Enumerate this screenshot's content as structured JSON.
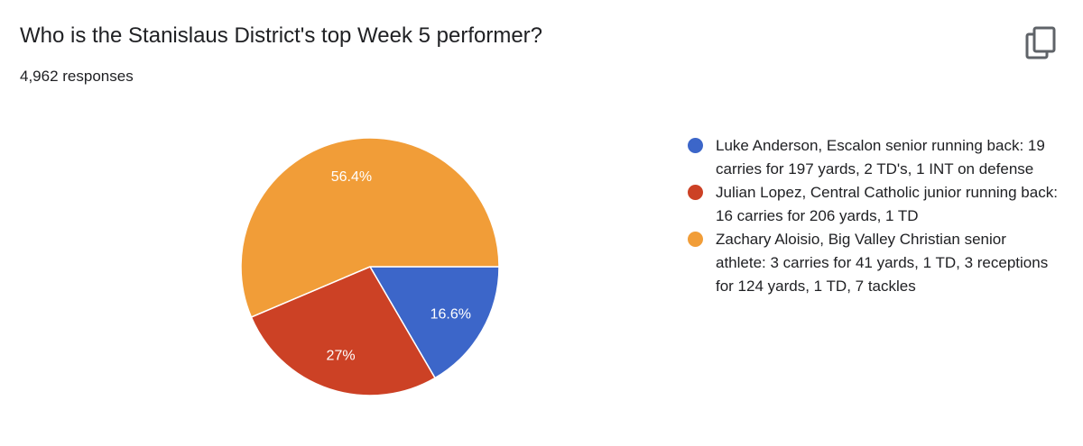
{
  "header": {
    "title": "Who is the Stanislaus District's top Week 5 performer?",
    "responses": "4,962 responses",
    "copy_icon": "copy-icon"
  },
  "chart_data": {
    "type": "pie",
    "title": "Who is the Stanislaus District's top Week 5 performer?",
    "categories": [
      "Luke Anderson, Escalon senior running back: 19 carries for 197 yards, 2 TD's, 1 INT on defense",
      "Julian Lopez, Central Catholic junior running back: 16 carries for 206 yards, 1 TD",
      "Zachary Aloisio, Big Valley Christian senior athlete: 3 carries for 41 yards, 1 TD, 3 receptions for 124 yards, 1 TD, 7 tackles"
    ],
    "values": [
      16.6,
      27,
      56.4
    ],
    "labels": [
      "16.6%",
      "27%",
      "56.4%"
    ],
    "colors": [
      "#3c66c9",
      "#cc4125",
      "#f19d38"
    ],
    "legend": "right"
  }
}
